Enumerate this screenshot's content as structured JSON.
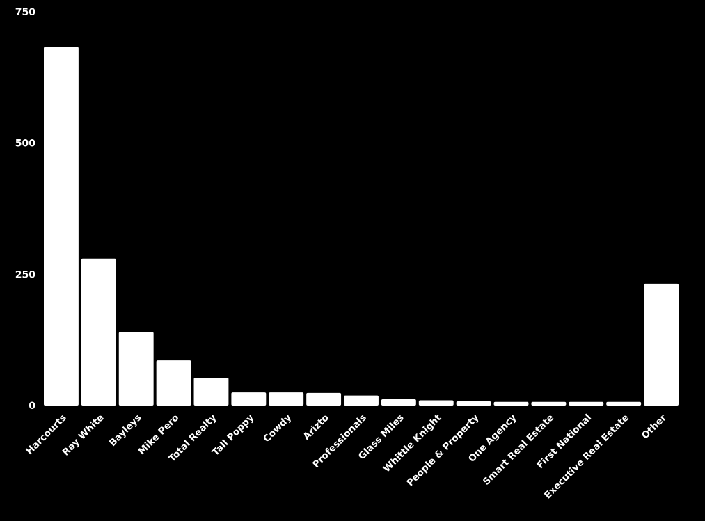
{
  "chart_data": {
    "type": "bar",
    "title": "",
    "xlabel": "",
    "ylabel": "",
    "categories": [
      "Harcourts",
      "Ray White",
      "Bayleys",
      "Mike Pero",
      "Total Realty",
      "Tall Poppy",
      "Cowdy",
      "Arizto",
      "Professionals",
      "Glass Miles",
      "Whittle Knight",
      "People & Property",
      "One Agency",
      "Smart Real Estate",
      "First National",
      "Executive Real Estate",
      "Other"
    ],
    "values": [
      683,
      280,
      140,
      86,
      53,
      25,
      25,
      24,
      19,
      12,
      10,
      8,
      7,
      7,
      7,
      7,
      232
    ],
    "ylim": [
      0,
      750
    ],
    "yticks": [
      0,
      250,
      500,
      750
    ],
    "grid": false,
    "legend": "none",
    "colors": {
      "background": "#000000",
      "bar": "#ffffff",
      "text": "#ffffff"
    }
  }
}
